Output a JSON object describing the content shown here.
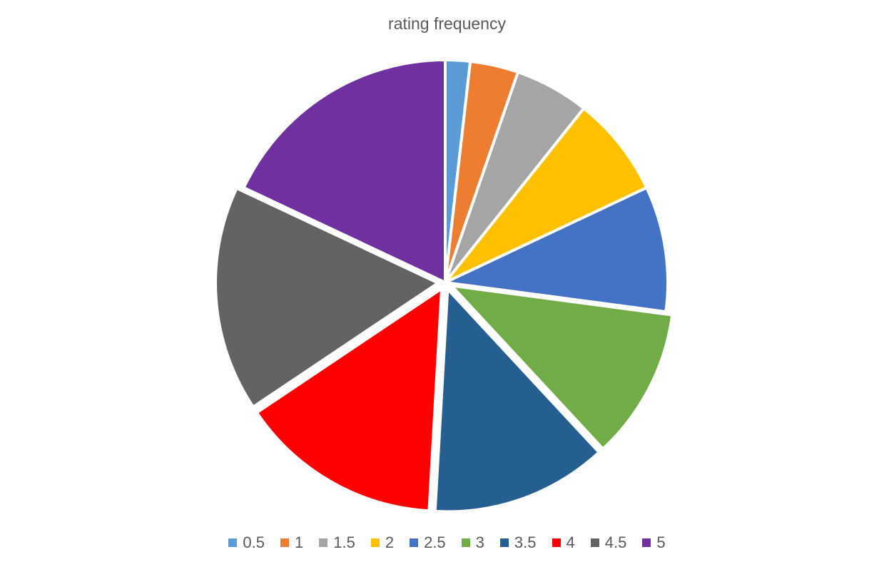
{
  "chart_data": {
    "type": "pie",
    "title": "rating frequency",
    "categories": [
      "0.5",
      "1",
      "1.5",
      "2",
      "2.5",
      "3",
      "3.5",
      "4",
      "4.5",
      "5"
    ],
    "values": [
      1.8,
      3.5,
      5.4,
      7.3,
      9.1,
      11.0,
      12.8,
      14.7,
      16.4,
      18.0
    ],
    "colors": [
      "#5B9BD5",
      "#ED7D31",
      "#A5A5A5",
      "#FFC000",
      "#4472C4",
      "#70AD47",
      "#255E91",
      "#FF0000",
      "#636363",
      "#7030A0"
    ],
    "exploded": [
      "3",
      "3.5",
      "4",
      "4.5"
    ],
    "legend_position": "bottom"
  }
}
